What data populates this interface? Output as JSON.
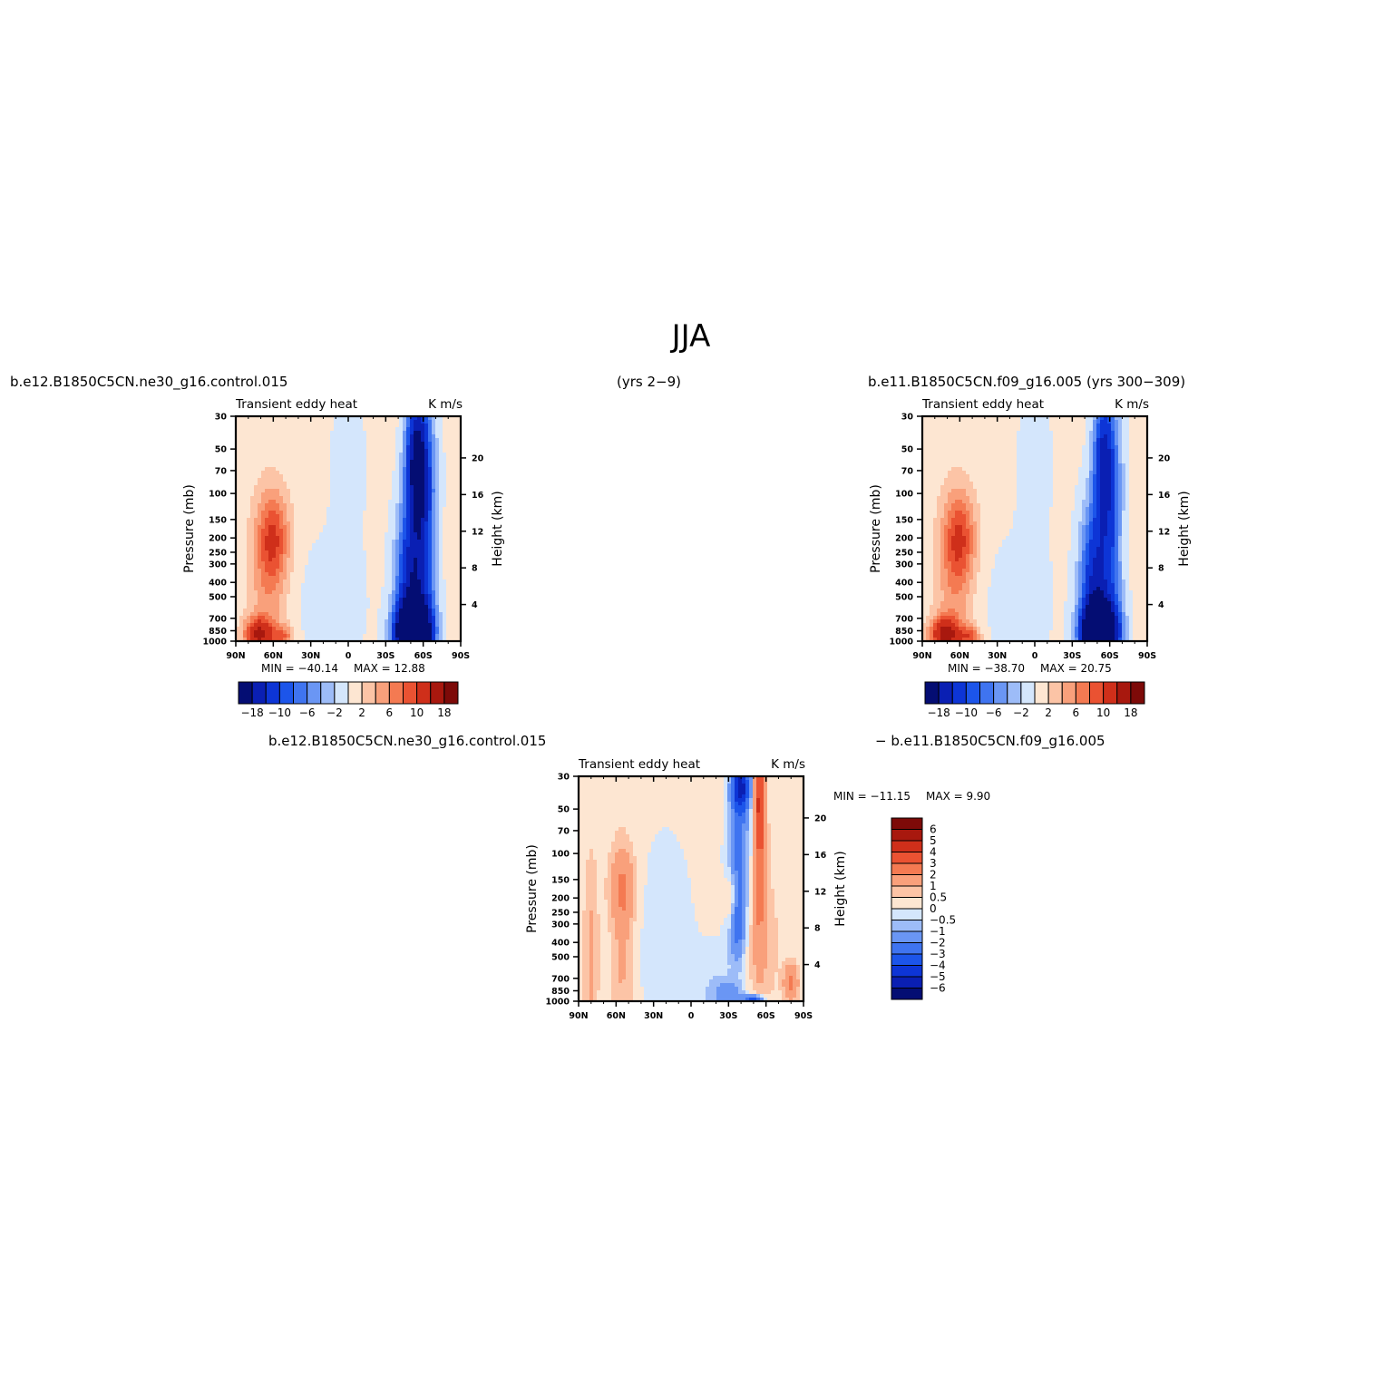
{
  "figure": {
    "title": "JJA",
    "case1": "b.e12.B1850C5CN.ne30_g16.control.015",
    "years_mid": "(yrs 2−9)",
    "case2": "b.e11.B1850C5CN.f09_g16.005 (yrs 300−309)",
    "diff_left": "b.e12.B1850C5CN.ne30_g16.control.015",
    "diff_right": "− b.e11.B1850C5CN.f09_g16.005"
  },
  "chart_data": [
    {
      "id": "panel1",
      "type": "heatmap",
      "left_title": "Transient eddy heat",
      "right_title": "K m/s",
      "ylabel": "Pressure (mb)",
      "ylabel_right": "Height (km)",
      "x_ticks": [
        "90N",
        "60N",
        "30N",
        "0",
        "30S",
        "60S",
        "90S"
      ],
      "y_ticks": [
        "30",
        "50",
        "70",
        "100",
        "150",
        "200",
        "250",
        "300",
        "400",
        "500",
        "700",
        "850",
        "1000"
      ],
      "y_right_ticks": [
        "4",
        "8",
        "12",
        "16",
        "20"
      ],
      "min_text": "MIN = −40.14",
      "max_text": "MAX =   12.88",
      "colorbar_labels": [
        "−18",
        "−10",
        "−6",
        "−2",
        "2",
        "6",
        "10",
        "18"
      ],
      "features": [
        {
          "lat": 60,
          "p": 200,
          "value": 8,
          "sx": 9,
          "sy": 0.5
        },
        {
          "lat": 65,
          "p": 500,
          "value": 4,
          "sx": 11,
          "sy": 1.1
        },
        {
          "lat": 72,
          "p": 900,
          "value": 12,
          "sx": 8,
          "sy": 0.18
        },
        {
          "lat": 52,
          "p": 930,
          "value": 6,
          "sx": 6,
          "sy": 0.12
        },
        {
          "lat": -52,
          "p": 880,
          "value": -40,
          "sx": 9,
          "sy": 0.3
        },
        {
          "lat": -50,
          "p": 450,
          "value": -16,
          "sx": 8,
          "sy": 0.9
        },
        {
          "lat": -55,
          "p": 60,
          "value": -20,
          "sx": 6,
          "sy": 0.7
        },
        {
          "lat": -62,
          "p": 200,
          "value": -9,
          "sx": 7,
          "sy": 1.4
        },
        {
          "lat": 15,
          "p": 600,
          "value": -1.5,
          "sx": 22,
          "sy": 0.8
        },
        {
          "lat": -70,
          "p": 220,
          "value": 1.5,
          "sx": 5,
          "sy": 0.5
        },
        {
          "lat": 0,
          "p": 60,
          "value": -1.2,
          "sx": 12,
          "sy": 1.0
        }
      ]
    },
    {
      "id": "panel2",
      "type": "heatmap",
      "left_title": "Transient eddy heat",
      "right_title": "K m/s",
      "ylabel": "Pressure (mb)",
      "ylabel_right": "Height (km)",
      "x_ticks": [
        "90N",
        "60N",
        "30N",
        "0",
        "30S",
        "60S",
        "90S"
      ],
      "y_ticks": [
        "30",
        "50",
        "70",
        "100",
        "150",
        "200",
        "250",
        "300",
        "400",
        "500",
        "700",
        "850",
        "1000"
      ],
      "y_right_ticks": [
        "4",
        "8",
        "12",
        "16",
        "20"
      ],
      "min_text": "MIN = −38.70",
      "max_text": "MAX =   20.75",
      "colorbar_labels": [
        "−18",
        "−10",
        "−6",
        "−2",
        "2",
        "6",
        "10",
        "18"
      ],
      "features": [
        {
          "lat": 60,
          "p": 200,
          "value": 8,
          "sx": 9,
          "sy": 0.5
        },
        {
          "lat": 65,
          "p": 500,
          "value": 4,
          "sx": 11,
          "sy": 1.1
        },
        {
          "lat": 72,
          "p": 900,
          "value": 14,
          "sx": 8,
          "sy": 0.18
        },
        {
          "lat": 52,
          "p": 930,
          "value": 7,
          "sx": 6,
          "sy": 0.12
        },
        {
          "lat": -52,
          "p": 880,
          "value": -38,
          "sx": 9,
          "sy": 0.3
        },
        {
          "lat": -48,
          "p": 450,
          "value": -15,
          "sx": 8,
          "sy": 0.9
        },
        {
          "lat": -55,
          "p": 60,
          "value": -14,
          "sx": 5.5,
          "sy": 0.7
        },
        {
          "lat": -62,
          "p": 200,
          "value": -8,
          "sx": 7,
          "sy": 1.4
        },
        {
          "lat": 15,
          "p": 600,
          "value": -1.4,
          "sx": 22,
          "sy": 0.8
        },
        {
          "lat": -70,
          "p": 220,
          "value": 1.5,
          "sx": 5,
          "sy": 0.5
        },
        {
          "lat": 0,
          "p": 60,
          "value": -1.2,
          "sx": 12,
          "sy": 1.0
        }
      ]
    },
    {
      "id": "panel3",
      "type": "heatmap",
      "left_title": "Transient eddy heat",
      "right_title": "K m/s",
      "ylabel": "Pressure (mb)",
      "ylabel_right": "Height (km)",
      "x_ticks": [
        "90N",
        "60N",
        "30N",
        "0",
        "30S",
        "60S",
        "90S"
      ],
      "y_ticks": [
        "30",
        "50",
        "70",
        "100",
        "150",
        "200",
        "250",
        "300",
        "400",
        "500",
        "700",
        "850",
        "1000"
      ],
      "y_right_ticks": [
        "4",
        "8",
        "12",
        "16",
        "20"
      ],
      "min_text": "MIN = −11.15",
      "max_text": "MAX =     9.90",
      "colorbar_labels": [
        "6",
        "5",
        "4",
        "3",
        "2",
        "1",
        "0.5",
        "0",
        "−0.5",
        "−1",
        "−2",
        "−3",
        "−4",
        "−5",
        "−6"
      ],
      "features": [
        {
          "lat": 55,
          "p": 170,
          "value": 1.6,
          "sx": 7,
          "sy": 0.4
        },
        {
          "lat": 55,
          "p": 500,
          "value": 0.9,
          "sx": 6,
          "sy": 1.2
        },
        {
          "lat": 80,
          "p": 500,
          "value": 1.0,
          "sx": 4,
          "sy": 1.1
        },
        {
          "lat": -32,
          "p": 200,
          "value": 1.6,
          "sx": 3,
          "sy": 0.3
        },
        {
          "lat": -40,
          "p": 35,
          "value": -5,
          "sx": 5,
          "sy": 0.3
        },
        {
          "lat": -38,
          "p": 120,
          "value": -2.5,
          "sx": 6,
          "sy": 0.9
        },
        {
          "lat": -37,
          "p": 320,
          "value": -1.6,
          "sx": 4,
          "sy": 0.35
        },
        {
          "lat": -55,
          "p": 40,
          "value": 3.5,
          "sx": 3,
          "sy": 0.6
        },
        {
          "lat": -55,
          "p": 130,
          "value": 1.8,
          "sx": 3.5,
          "sy": 0.9
        },
        {
          "lat": -55,
          "p": 400,
          "value": 0.8,
          "sx": 10,
          "sy": 0.8
        },
        {
          "lat": -80,
          "p": 750,
          "value": 2.2,
          "sx": 4,
          "sy": 0.2
        },
        {
          "lat": -50,
          "p": 980,
          "value": -4,
          "sx": 6,
          "sy": 0.05
        },
        {
          "lat": -30,
          "p": 900,
          "value": -1.2,
          "sx": 9,
          "sy": 0.15
        },
        {
          "lat": 20,
          "p": 400,
          "value": -0.6,
          "sx": 15,
          "sy": 1.2
        },
        {
          "lat": -20,
          "p": 800,
          "value": -0.6,
          "sx": 14,
          "sy": 0.5
        }
      ]
    }
  ],
  "colors": {
    "panel_scale": [
      "#040d73",
      "#0a1fb3",
      "#0d35d6",
      "#1c55ea",
      "#3f74f0",
      "#6a96f4",
      "#9dbcf8",
      "#d4e6fc",
      "#fde6d2",
      "#fcc4a6",
      "#f9a07b",
      "#f47a52",
      "#ea5232",
      "#cf2f1a",
      "#a8180e",
      "#7d0a08"
    ],
    "diff_scale": [
      "#7d0a08",
      "#a8180e",
      "#cf2f1a",
      "#ea5232",
      "#f47a52",
      "#f9a07b",
      "#fcc4a6",
      "#fde6d2",
      "#d4e6fc",
      "#9dbcf8",
      "#6a96f4",
      "#3f74f0",
      "#1c55ea",
      "#0d35d6",
      "#0a1fb3",
      "#040d73"
    ]
  }
}
